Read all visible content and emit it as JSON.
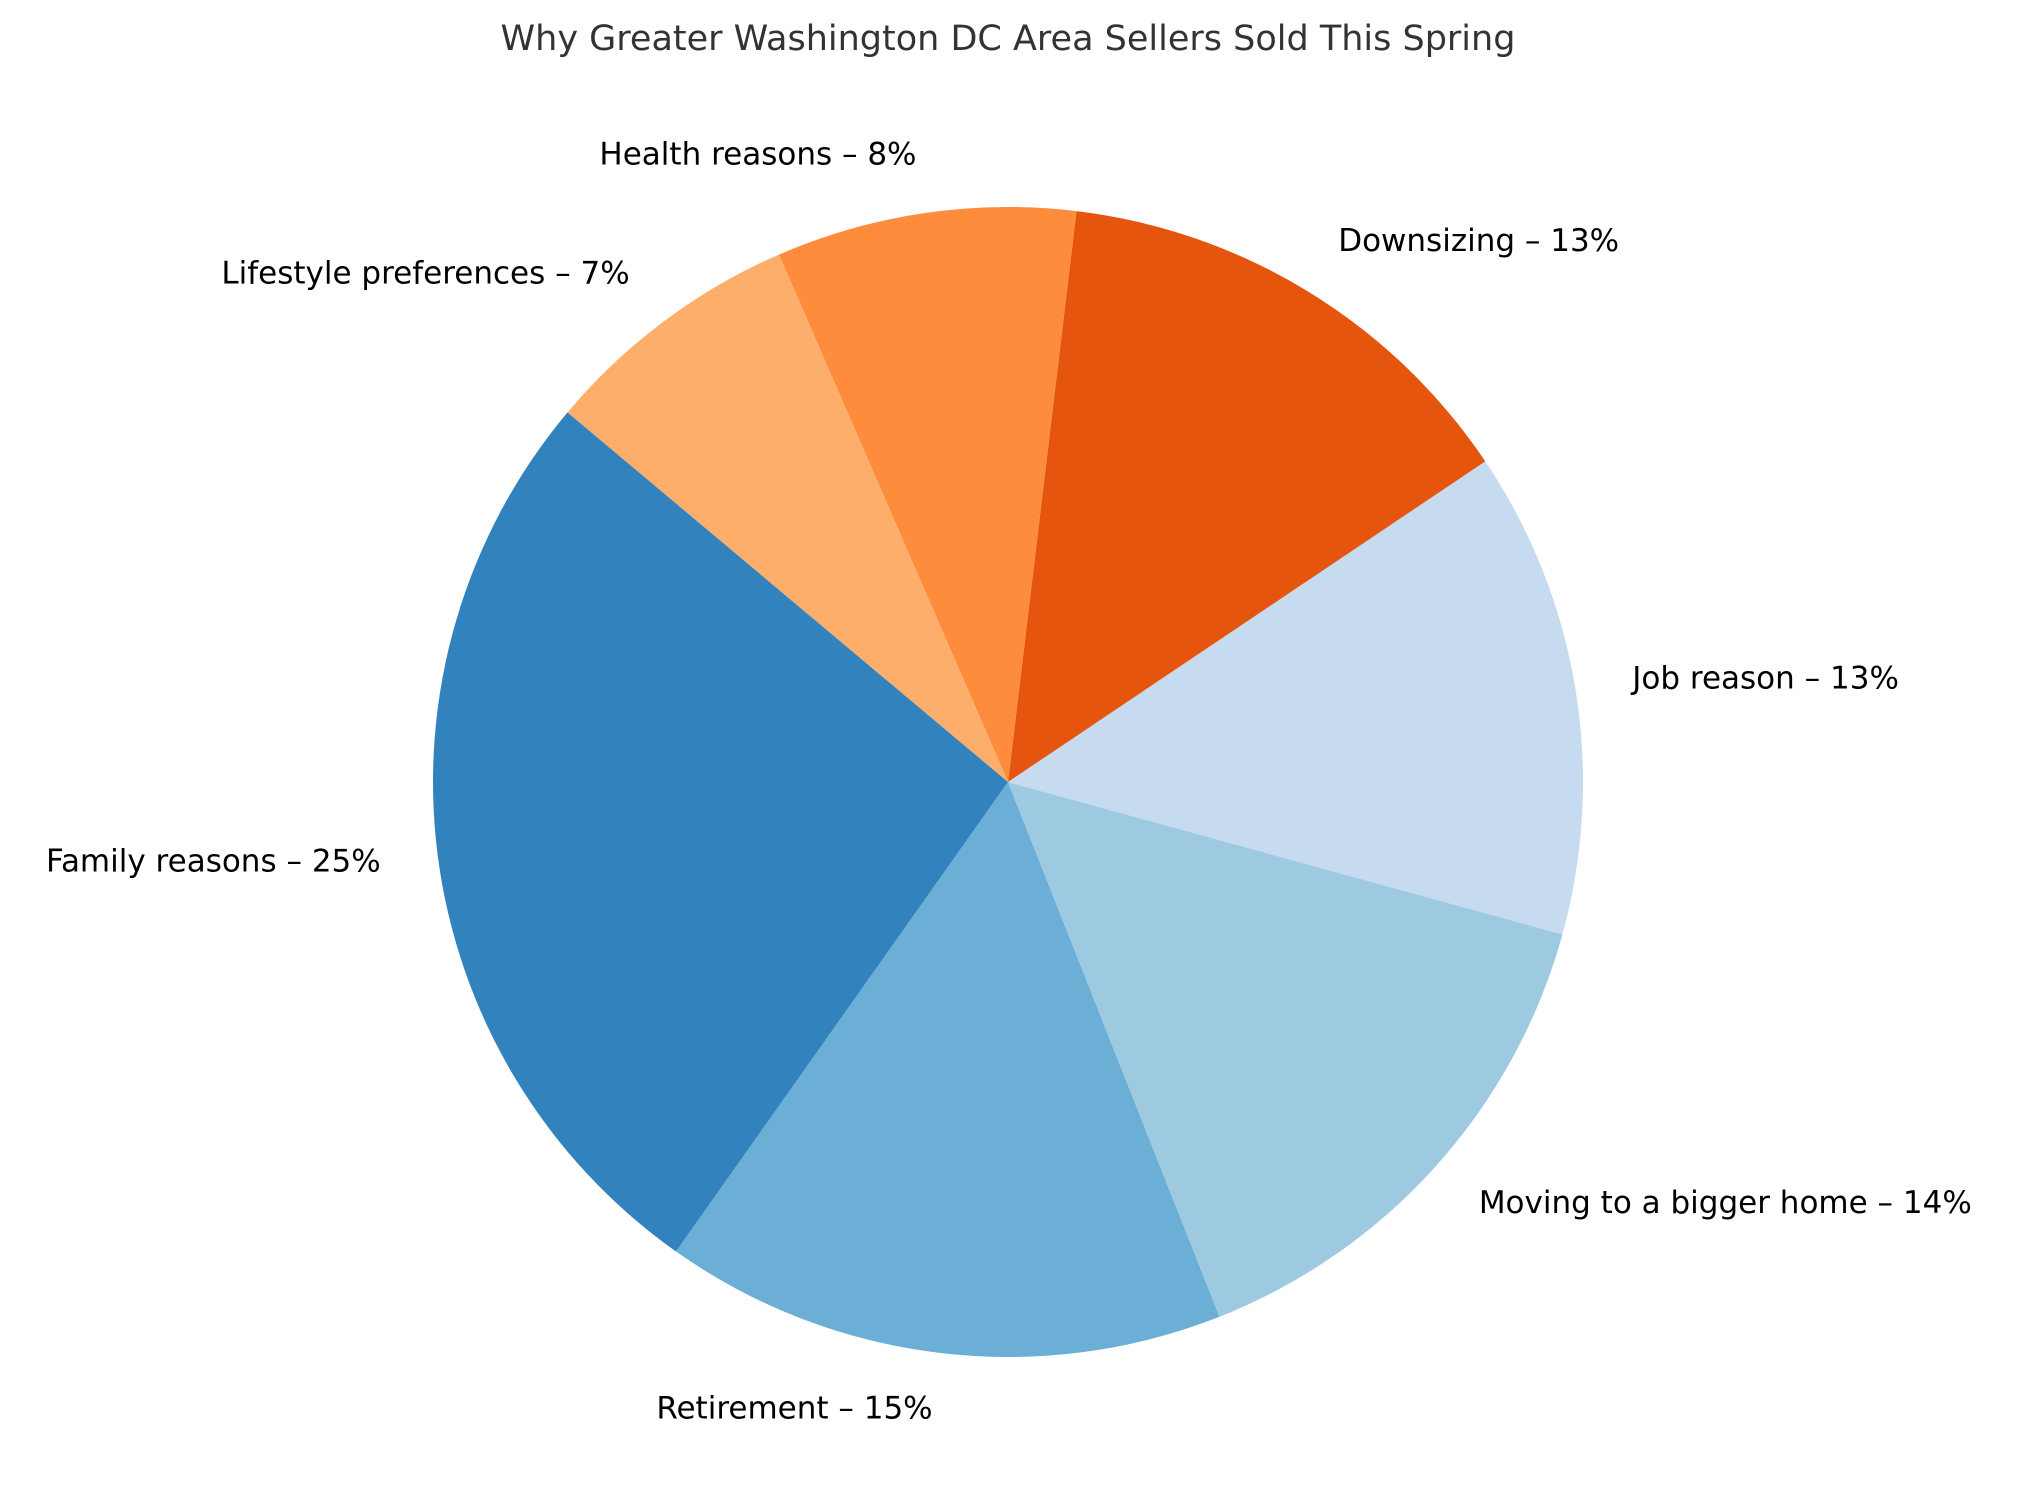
{
  "chart_data": {
    "type": "pie",
    "title": "Why Greater Washington DC Area Sellers Sold This Spring",
    "label_separator": " – ",
    "value_suffix": "%",
    "slices": [
      {
        "label": "Family reasons",
        "value": 25,
        "color": "#3182bd"
      },
      {
        "label": "Retirement",
        "value": 15,
        "color": "#6baed6"
      },
      {
        "label": "Moving to a bigger home",
        "value": 14,
        "color": "#9ecae1"
      },
      {
        "label": "Job reason",
        "value": 13,
        "color": "#c6dbef"
      },
      {
        "label": "Downsizing",
        "value": 13,
        "color": "#e6550d"
      },
      {
        "label": "Health reasons",
        "value": 8,
        "color": "#fd8d3c"
      },
      {
        "label": "Lifestyle preferences",
        "value": 7,
        "color": "#fdae6b"
      }
    ]
  }
}
